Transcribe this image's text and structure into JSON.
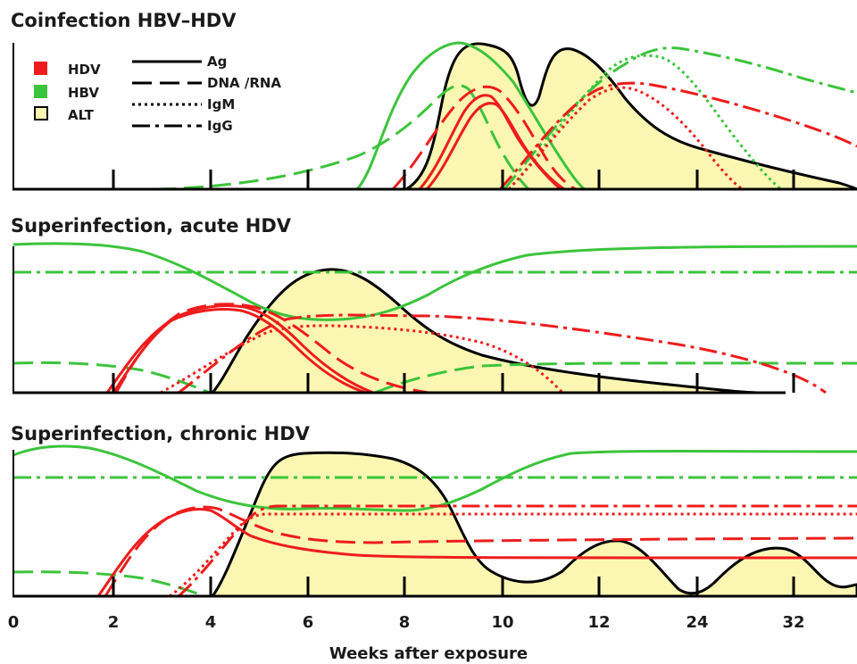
{
  "panels": [
    {
      "title": "Coinfection HBV–HDV"
    },
    {
      "title": "Superinfection, acute HDV"
    },
    {
      "title": "Superinfection, chronic HDV"
    }
  ],
  "legend": {
    "colors": [
      {
        "label": "HDV",
        "color": "#ee1c1c"
      },
      {
        "label": "HBV",
        "color": "#3cc43c"
      },
      {
        "label": "ALT",
        "color": "#fbf6b2"
      }
    ],
    "line_styles": [
      {
        "label": "Ag",
        "style": "solid"
      },
      {
        "label": "DNA /RNA",
        "style": "dashed"
      },
      {
        "label": "IgM",
        "style": "dotted"
      },
      {
        "label": "IgG",
        "style": "dash-dot"
      }
    ]
  },
  "x_axis": {
    "label": "Weeks after exposure",
    "ticks": [
      "0",
      "2",
      "4",
      "6",
      "8",
      "10",
      "12",
      "24",
      "32"
    ]
  },
  "colors": {
    "hdv": "#ee1c1c",
    "hbv": "#3cc43c",
    "alt_fill": "#fbf6b2",
    "outline": "#000000"
  }
}
